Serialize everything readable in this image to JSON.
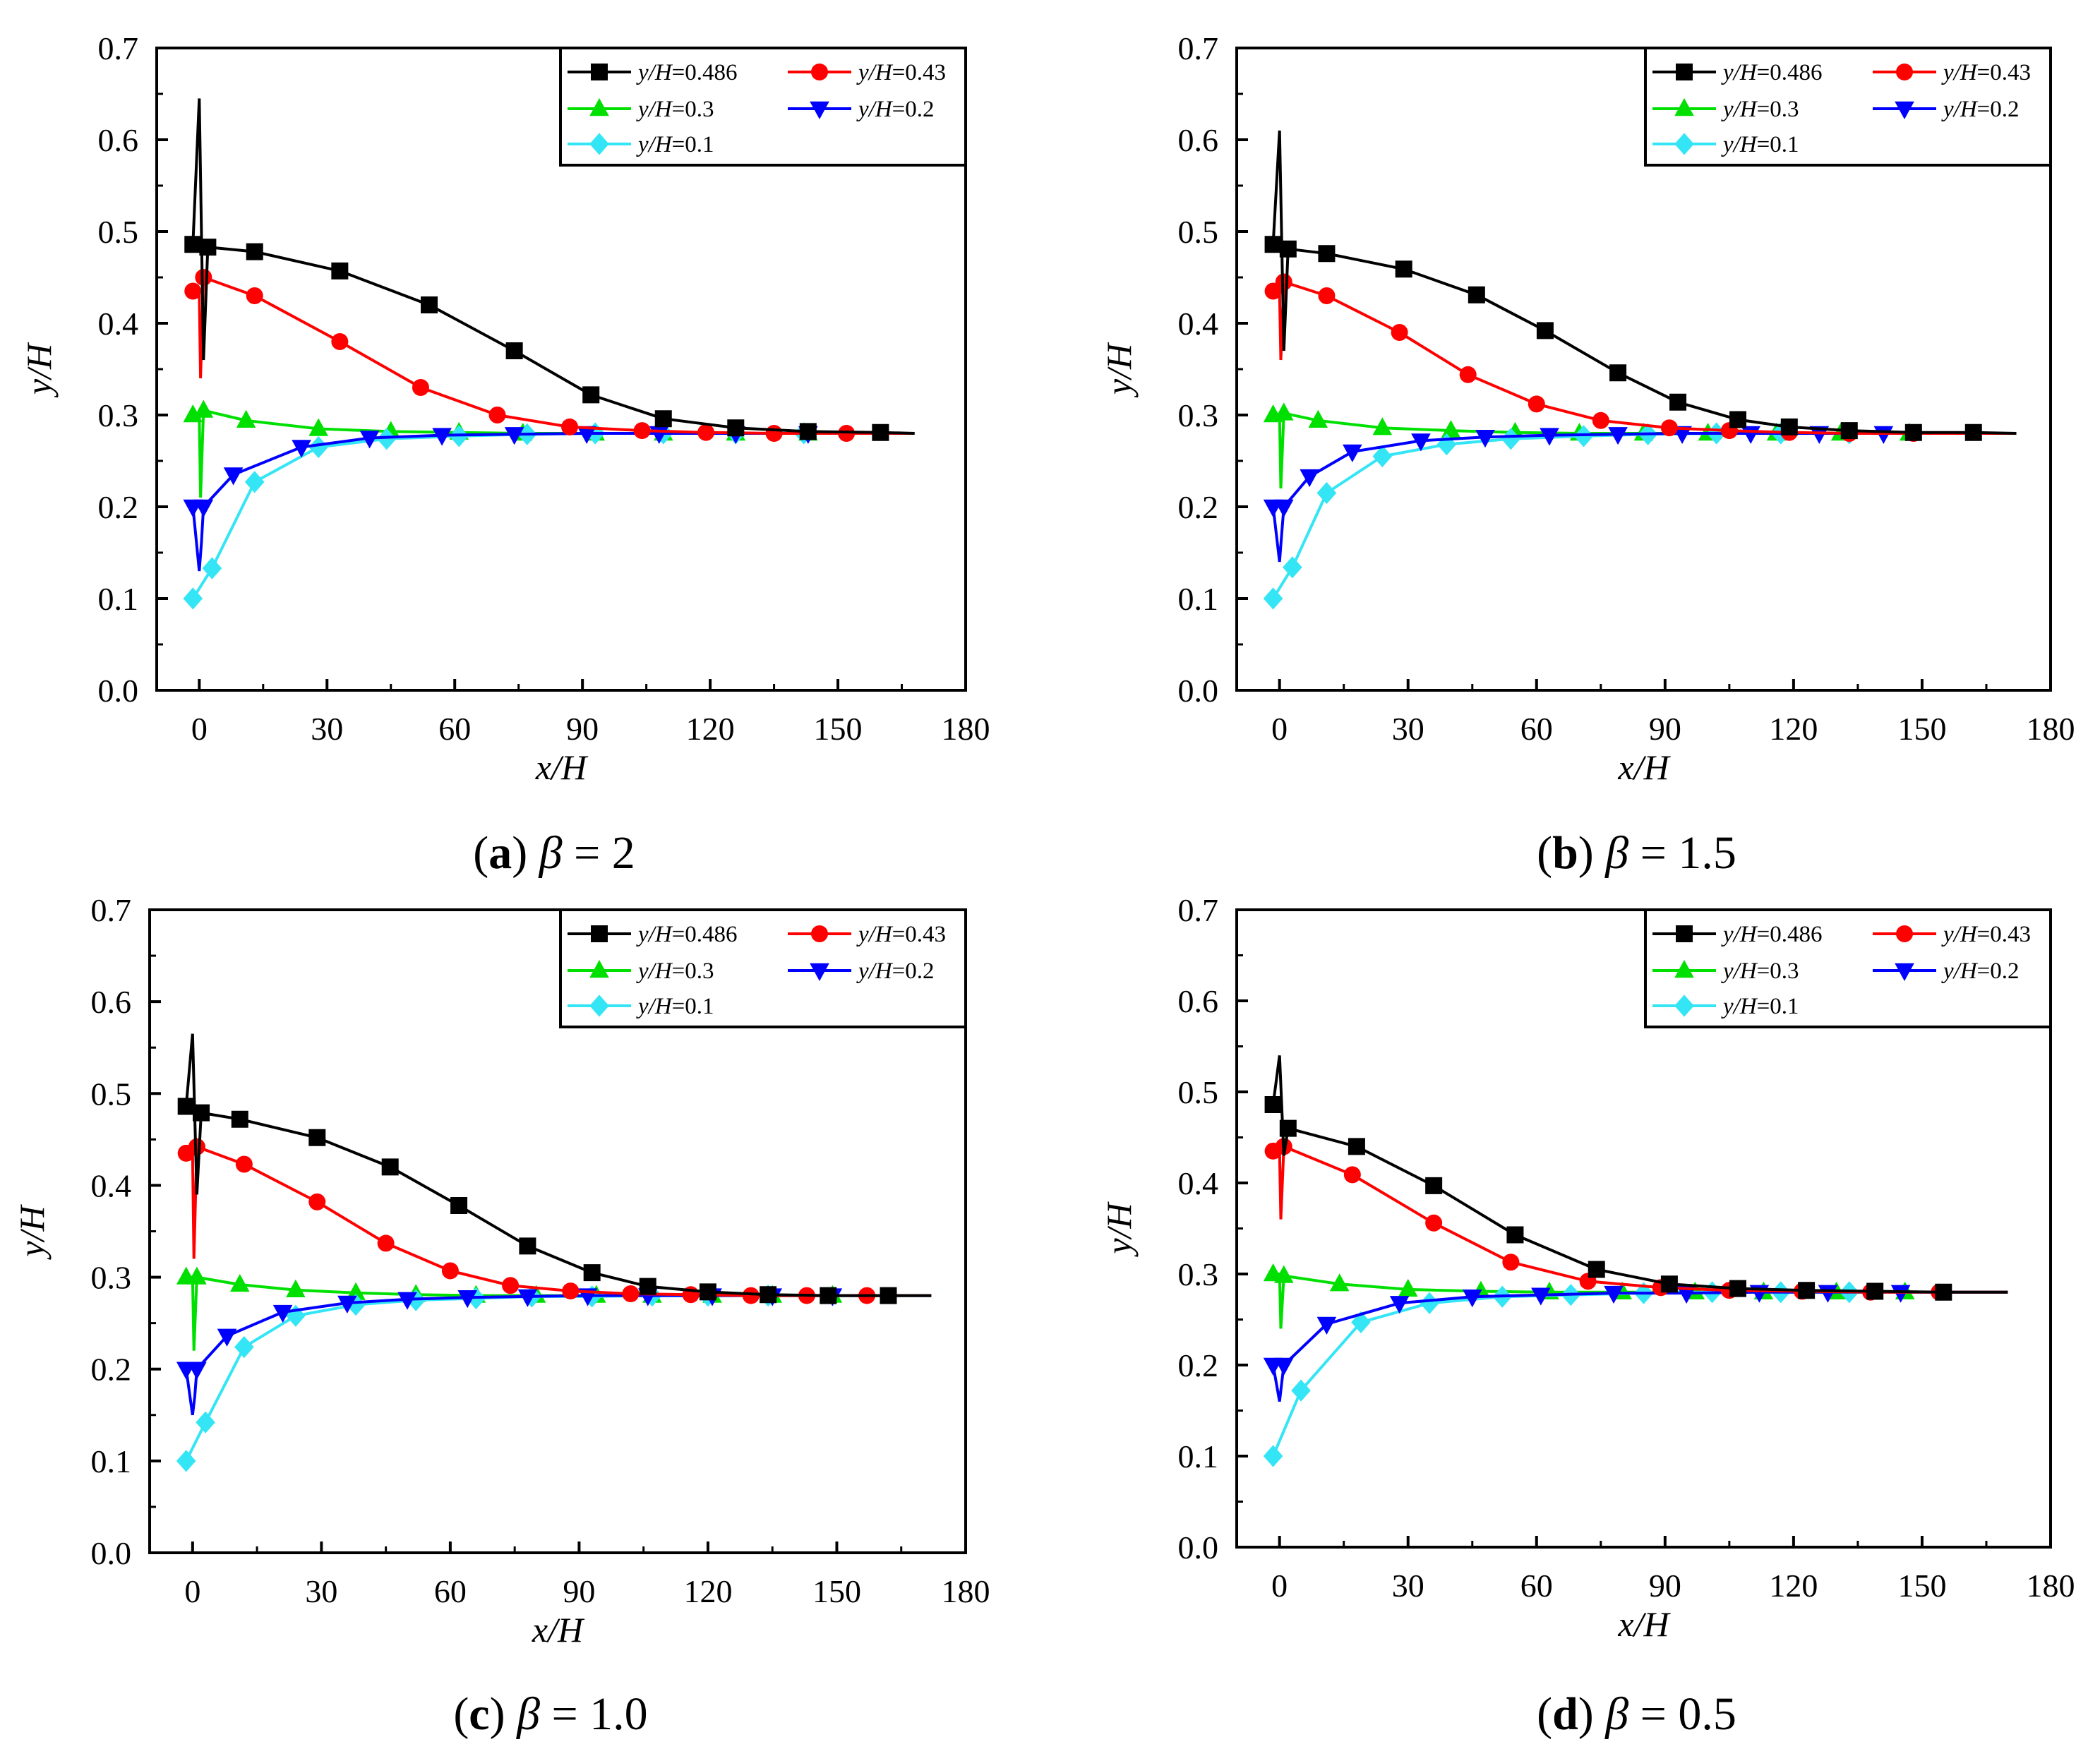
{
  "legend": {
    "y_var": "y/H",
    "series_values": [
      "0.486",
      "0.43",
      "0.3",
      "0.2",
      "0.1"
    ]
  },
  "series_style": [
    {
      "color": "#000000",
      "marker": "square"
    },
    {
      "color": "#ff0000",
      "marker": "circle"
    },
    {
      "color": "#00e000",
      "marker": "triangle-up"
    },
    {
      "color": "#0000ff",
      "marker": "triangle-down"
    },
    {
      "color": "#33e5f5",
      "marker": "diamond"
    }
  ],
  "chart_data": [
    {
      "type": "line",
      "panel": "a",
      "caption": {
        "letter": "a",
        "symbol": "β",
        "value": "= 2"
      },
      "xlabel": "x/H",
      "ylabel": "y/H",
      "xlim": [
        -10,
        180
      ],
      "ylim": [
        0,
        0.7
      ],
      "xticks": [
        0,
        30,
        60,
        90,
        120,
        150,
        180
      ],
      "yticks": [
        "0.0",
        "0.1",
        "0.2",
        "0.3",
        "0.4",
        "0.5",
        "0.6",
        "0.7"
      ],
      "legend_position": "top-right",
      "series": [
        {
          "name": "y/H=0.486",
          "spike": [
            [
              -1.5,
              0.486
            ],
            [
              0,
              0.645
            ],
            [
              1,
              0.36
            ],
            [
              2,
              0.483
            ]
          ],
          "x": [
            2,
            13,
            33,
            54,
            74,
            92,
            109,
            126,
            143,
            160,
            168
          ],
          "y": [
            0.483,
            0.478,
            0.457,
            0.42,
            0.37,
            0.322,
            0.296,
            0.286,
            0.282,
            0.281,
            0.28
          ]
        },
        {
          "name": "y/H=0.43",
          "spike": [
            [
              -1.5,
              0.435
            ],
            [
              0,
              0.435
            ],
            [
              0.3,
              0.34
            ],
            [
              1,
              0.45
            ]
          ],
          "x": [
            1,
            13,
            33,
            52,
            70,
            87,
            104,
            119,
            135,
            152,
            168
          ],
          "y": [
            0.45,
            0.43,
            0.38,
            0.33,
            0.3,
            0.287,
            0.283,
            0.281,
            0.28,
            0.28,
            0.28
          ]
        },
        {
          "name": "y/H=0.3",
          "spike": [
            [
              -1.5,
              0.3
            ],
            [
              0,
              0.3
            ],
            [
              0.3,
              0.21
            ],
            [
              1,
              0.305
            ]
          ],
          "x": [
            1,
            11,
            28,
            45,
            61,
            76,
            93,
            109,
            126,
            143,
            168
          ],
          "y": [
            0.305,
            0.294,
            0.285,
            0.282,
            0.281,
            0.28,
            0.28,
            0.28,
            0.28,
            0.28,
            0.28
          ]
        },
        {
          "name": "y/H=0.2",
          "spike": [
            [
              -1.5,
              0.2
            ],
            [
              0,
              0.13
            ],
            [
              0.5,
              0.16
            ],
            [
              1,
              0.2
            ]
          ],
          "x": [
            1,
            8,
            24,
            40,
            57,
            74,
            91,
            108,
            126,
            143,
            168
          ],
          "y": [
            0.2,
            0.235,
            0.265,
            0.275,
            0.278,
            0.279,
            0.28,
            0.28,
            0.28,
            0.28,
            0.28
          ]
        },
        {
          "name": "y/H=0.1",
          "spike": [
            [
              -1.5,
              0.1
            ],
            [
              -1.5,
              0.1
            ]
          ],
          "x": [
            -1.5,
            3,
            13,
            28,
            44,
            61,
            77,
            93,
            109,
            126,
            142,
            168
          ],
          "y": [
            0.1,
            0.133,
            0.227,
            0.265,
            0.274,
            0.277,
            0.279,
            0.28,
            0.28,
            0.28,
            0.28,
            0.28
          ]
        }
      ]
    },
    {
      "type": "line",
      "panel": "b",
      "caption": {
        "letter": "b",
        "symbol": "β",
        "value": "= 1.5"
      },
      "xlabel": "x/H",
      "ylabel": "y/H",
      "xlim": [
        -10,
        180
      ],
      "ylim": [
        0,
        0.7
      ],
      "xticks": [
        0,
        30,
        60,
        90,
        120,
        150,
        180
      ],
      "yticks": [
        "0.0",
        "0.1",
        "0.2",
        "0.3",
        "0.4",
        "0.5",
        "0.6",
        "0.7"
      ],
      "legend_position": "top-right",
      "series": [
        {
          "name": "y/H=0.486",
          "spike": [
            [
              -1.5,
              0.486
            ],
            [
              0,
              0.61
            ],
            [
              1,
              0.37
            ],
            [
              2,
              0.481
            ]
          ],
          "x": [
            2,
            11,
            29,
            46,
            62,
            79,
            93,
            107,
            119,
            133,
            148,
            162,
            172
          ],
          "y": [
            0.481,
            0.476,
            0.459,
            0.431,
            0.392,
            0.346,
            0.314,
            0.295,
            0.287,
            0.283,
            0.281,
            0.281,
            0.28
          ]
        },
        {
          "name": "y/H=0.43",
          "spike": [
            [
              -1.5,
              0.435
            ],
            [
              0,
              0.435
            ],
            [
              0.3,
              0.36
            ],
            [
              1,
              0.445
            ]
          ],
          "x": [
            1,
            11,
            28,
            44,
            60,
            75,
            91,
            105,
            119,
            133,
            148,
            172
          ],
          "y": [
            0.445,
            0.43,
            0.39,
            0.344,
            0.312,
            0.294,
            0.286,
            0.283,
            0.281,
            0.28,
            0.28,
            0.28
          ]
        },
        {
          "name": "y/H=0.3",
          "spike": [
            [
              -1.5,
              0.3
            ],
            [
              0,
              0.3
            ],
            [
              0.3,
              0.22
            ],
            [
              1,
              0.302
            ]
          ],
          "x": [
            1,
            9,
            24,
            40,
            55,
            70,
            85,
            100,
            116,
            131,
            147,
            172
          ],
          "y": [
            0.302,
            0.294,
            0.286,
            0.283,
            0.281,
            0.28,
            0.28,
            0.28,
            0.28,
            0.28,
            0.28,
            0.28
          ]
        },
        {
          "name": "y/H=0.2",
          "spike": [
            [
              -1.5,
              0.2
            ],
            [
              0,
              0.14
            ],
            [
              0.5,
              0.17
            ],
            [
              1,
              0.2
            ]
          ],
          "x": [
            1,
            7,
            17,
            33,
            48,
            63,
            79,
            94,
            110,
            126,
            141,
            172
          ],
          "y": [
            0.2,
            0.233,
            0.26,
            0.272,
            0.276,
            0.278,
            0.279,
            0.28,
            0.28,
            0.28,
            0.28,
            0.28
          ]
        },
        {
          "name": "y/H=0.1",
          "spike": [
            [
              -1.5,
              0.1
            ],
            [
              -1.5,
              0.1
            ]
          ],
          "x": [
            -1.5,
            3,
            11,
            24,
            39,
            54,
            71,
            86,
            102,
            117,
            133,
            172
          ],
          "y": [
            0.1,
            0.134,
            0.215,
            0.255,
            0.268,
            0.274,
            0.277,
            0.279,
            0.28,
            0.28,
            0.28,
            0.28
          ]
        }
      ]
    },
    {
      "type": "line",
      "panel": "c",
      "caption": {
        "letter": "c",
        "symbol": "β",
        "value": "= 1.0"
      },
      "xlabel": "x/H",
      "ylabel": "y/H",
      "xlim": [
        -10,
        180
      ],
      "ylim": [
        0,
        0.7
      ],
      "xticks": [
        0,
        30,
        60,
        90,
        120,
        150,
        180
      ],
      "yticks": [
        "0.0",
        "0.1",
        "0.2",
        "0.3",
        "0.4",
        "0.5",
        "0.6",
        "0.7"
      ],
      "legend_position": "top-right",
      "series": [
        {
          "name": "y/H=0.486",
          "spike": [
            [
              -1.5,
              0.486
            ],
            [
              0,
              0.565
            ],
            [
              1,
              0.39
            ],
            [
              2,
              0.479
            ]
          ],
          "x": [
            2,
            11,
            29,
            46,
            62,
            78,
            93,
            106,
            120,
            134,
            148,
            162,
            172
          ],
          "y": [
            0.479,
            0.472,
            0.452,
            0.42,
            0.378,
            0.334,
            0.305,
            0.29,
            0.284,
            0.281,
            0.28,
            0.28,
            0.28
          ]
        },
        {
          "name": "y/H=0.43",
          "spike": [
            [
              -1.5,
              0.435
            ],
            [
              0,
              0.435
            ],
            [
              0.3,
              0.32
            ],
            [
              1,
              0.442
            ]
          ],
          "x": [
            1,
            12,
            29,
            45,
            60,
            74,
            88,
            102,
            116,
            130,
            143,
            157,
            172
          ],
          "y": [
            0.442,
            0.423,
            0.382,
            0.337,
            0.307,
            0.291,
            0.285,
            0.282,
            0.281,
            0.28,
            0.28,
            0.28,
            0.28
          ]
        },
        {
          "name": "y/H=0.3",
          "spike": [
            [
              -1.5,
              0.3
            ],
            [
              0,
              0.3
            ],
            [
              0.3,
              0.22
            ],
            [
              1,
              0.3
            ]
          ],
          "x": [
            1,
            11,
            24,
            38,
            52,
            66,
            80,
            94,
            107,
            121,
            135,
            149,
            172
          ],
          "y": [
            0.3,
            0.292,
            0.286,
            0.283,
            0.281,
            0.28,
            0.28,
            0.28,
            0.28,
            0.28,
            0.28,
            0.28,
            0.28
          ]
        },
        {
          "name": "y/H=0.2",
          "spike": [
            [
              -1.5,
              0.2
            ],
            [
              0,
              0.15
            ],
            [
              0.5,
              0.17
            ],
            [
              1,
              0.2
            ]
          ],
          "x": [
            1,
            8,
            21,
            36,
            50,
            64,
            78,
            92,
            106,
            121,
            135,
            149,
            172
          ],
          "y": [
            0.2,
            0.236,
            0.262,
            0.272,
            0.276,
            0.278,
            0.279,
            0.28,
            0.28,
            0.28,
            0.28,
            0.28,
            0.28
          ]
        },
        {
          "name": "y/H=0.1",
          "spike": [
            [
              -1.5,
              0.1
            ],
            [
              -1.5,
              0.1
            ]
          ],
          "x": [
            -1.5,
            3,
            12,
            24,
            38,
            52,
            66,
            79,
            93,
            107,
            120,
            134,
            172
          ],
          "y": [
            0.1,
            0.142,
            0.224,
            0.258,
            0.27,
            0.275,
            0.277,
            0.279,
            0.279,
            0.28,
            0.28,
            0.28,
            0.28
          ]
        }
      ]
    },
    {
      "type": "line",
      "panel": "d",
      "caption": {
        "letter": "d",
        "symbol": "β",
        "value": "= 0.5"
      },
      "xlabel": "x/H",
      "ylabel": "y/H",
      "xlim": [
        -10,
        180
      ],
      "ylim": [
        0,
        0.7
      ],
      "xticks": [
        0,
        30,
        60,
        90,
        120,
        150,
        180
      ],
      "yticks": [
        "0.0",
        "0.1",
        "0.2",
        "0.3",
        "0.4",
        "0.5",
        "0.6",
        "0.7"
      ],
      "legend_position": "top-right",
      "series": [
        {
          "name": "y/H=0.486",
          "spike": [
            [
              -1.5,
              0.486
            ],
            [
              0,
              0.54
            ],
            [
              1,
              0.43
            ],
            [
              2,
              0.46
            ]
          ],
          "x": [
            2,
            18,
            36,
            55,
            74,
            91,
            107,
            123,
            139,
            155,
            170
          ],
          "y": [
            0.46,
            0.44,
            0.397,
            0.343,
            0.305,
            0.289,
            0.284,
            0.282,
            0.281,
            0.28,
            0.28
          ]
        },
        {
          "name": "y/H=0.43",
          "spike": [
            [
              -1.5,
              0.435
            ],
            [
              0,
              0.435
            ],
            [
              0.3,
              0.36
            ],
            [
              1,
              0.44
            ]
          ],
          "x": [
            1,
            17,
            36,
            54,
            72,
            89,
            105,
            122,
            138,
            154,
            170
          ],
          "y": [
            0.44,
            0.409,
            0.356,
            0.313,
            0.292,
            0.285,
            0.282,
            0.281,
            0.28,
            0.28,
            0.28
          ]
        },
        {
          "name": "y/H=0.3",
          "spike": [
            [
              -1.5,
              0.3
            ],
            [
              0,
              0.3
            ],
            [
              0.3,
              0.24
            ],
            [
              1,
              0.298
            ]
          ],
          "x": [
            1,
            14,
            30,
            47,
            63,
            80,
            97,
            113,
            130,
            146,
            170
          ],
          "y": [
            0.298,
            0.289,
            0.283,
            0.281,
            0.28,
            0.28,
            0.28,
            0.28,
            0.28,
            0.28,
            0.28
          ]
        },
        {
          "name": "y/H=0.2",
          "spike": [
            [
              -1.5,
              0.2
            ],
            [
              0,
              0.16
            ],
            [
              0.5,
              0.18
            ],
            [
              1,
              0.2
            ]
          ],
          "x": [
            1,
            11,
            28,
            45,
            61,
            78,
            95,
            112,
            128,
            145,
            170
          ],
          "y": [
            0.2,
            0.245,
            0.268,
            0.275,
            0.277,
            0.279,
            0.279,
            0.28,
            0.28,
            0.28,
            0.28
          ]
        },
        {
          "name": "y/H=0.1",
          "spike": [
            [
              -1.5,
              0.1
            ],
            [
              -1.5,
              0.1
            ]
          ],
          "x": [
            -1.5,
            5,
            19,
            35,
            52,
            68,
            85,
            101,
            117,
            133,
            170
          ],
          "y": [
            0.1,
            0.172,
            0.247,
            0.268,
            0.275,
            0.277,
            0.279,
            0.28,
            0.28,
            0.28,
            0.28
          ]
        }
      ]
    }
  ]
}
